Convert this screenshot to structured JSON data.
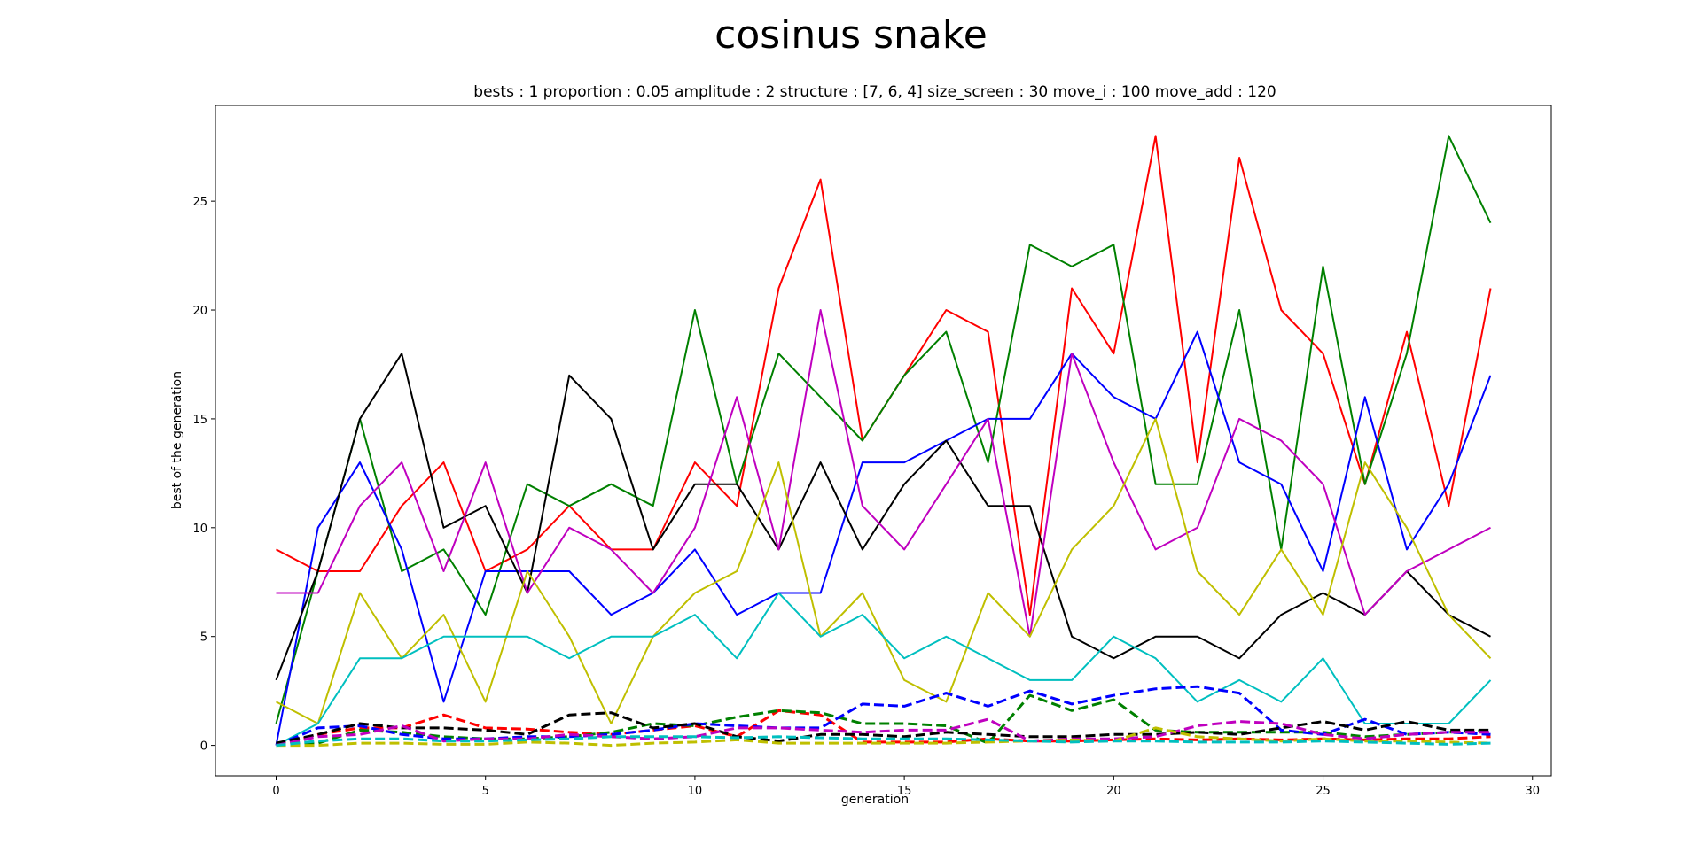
{
  "chart_data": {
    "type": "line",
    "title": "cosinus snake",
    "subtitle": "bests : 1   proportion : 0.05   amplitude : 2   structure : [7, 6, 4]   size_screen : 30   move_i : 100   move_add : 120",
    "xlabel": "generation",
    "ylabel": "best of the generation",
    "xlim": [
      -1.45,
      30.45
    ],
    "ylim": [
      -1.4,
      29.4
    ],
    "xticks": [
      0,
      5,
      10,
      15,
      20,
      25,
      30
    ],
    "yticks": [
      0,
      5,
      10,
      15,
      20,
      25
    ],
    "grid": false,
    "x": [
      0,
      1,
      2,
      3,
      4,
      5,
      6,
      7,
      8,
      9,
      10,
      11,
      12,
      13,
      14,
      15,
      16,
      17,
      18,
      19,
      20,
      21,
      22,
      23,
      24,
      25,
      26,
      27,
      28,
      29
    ],
    "series": [
      {
        "color": "#ff0000",
        "style": "solid",
        "values": [
          9,
          8,
          8,
          11,
          13,
          8,
          9,
          11,
          9,
          9,
          13,
          11,
          21,
          26,
          14,
          17,
          20,
          19,
          6,
          21,
          18,
          28,
          13,
          27,
          20,
          18,
          12,
          19,
          11,
          21
        ]
      },
      {
        "color": "#008000",
        "style": "solid",
        "values": [
          1,
          8,
          15,
          8,
          9,
          6,
          12,
          11,
          12,
          11,
          20,
          12,
          18,
          16,
          14,
          17,
          19,
          13,
          23,
          22,
          23,
          12,
          12,
          20,
          9,
          22,
          12,
          18,
          28,
          24
        ]
      },
      {
        "color": "#0000ff",
        "style": "solid",
        "values": [
          0,
          10,
          13,
          9,
          2,
          8,
          8,
          8,
          6,
          7,
          9,
          6,
          7,
          7,
          13,
          13,
          14,
          15,
          15,
          18,
          16,
          15,
          19,
          13,
          12,
          8,
          16,
          9,
          12,
          17
        ]
      },
      {
        "color": "#000000",
        "style": "solid",
        "values": [
          3,
          8,
          15,
          18,
          10,
          11,
          7,
          17,
          15,
          9,
          12,
          12,
          9,
          13,
          9,
          12,
          14,
          11,
          11,
          5,
          4,
          5,
          5,
          4,
          6,
          7,
          6,
          8,
          6,
          5
        ]
      },
      {
        "color": "#bf00bf",
        "style": "solid",
        "values": [
          7,
          7,
          11,
          13,
          8,
          13,
          7,
          10,
          9,
          7,
          10,
          16,
          9,
          20,
          11,
          9,
          12,
          15,
          5,
          18,
          13,
          9,
          10,
          15,
          14,
          12,
          6,
          8,
          9,
          10
        ]
      },
      {
        "color": "#bfbf00",
        "style": "solid",
        "values": [
          2,
          1,
          7,
          4,
          6,
          2,
          8,
          5,
          1,
          5,
          7,
          8,
          13,
          5,
          7,
          3,
          2,
          7,
          5,
          9,
          11,
          15,
          8,
          6,
          9,
          6,
          13,
          10,
          6,
          4
        ]
      },
      {
        "color": "#00bfbf",
        "style": "solid",
        "values": [
          0,
          1,
          4,
          4,
          5,
          5,
          5,
          4,
          5,
          5,
          6,
          4,
          7,
          5,
          6,
          4,
          5,
          4,
          3,
          3,
          5,
          4,
          2,
          3,
          2,
          4,
          1,
          1,
          1,
          3
        ]
      },
      {
        "color": "#ff0000",
        "style": "dashed",
        "values": [
          0,
          0.5,
          0.8,
          0.8,
          1.4,
          0.8,
          0.75,
          0.6,
          0.5,
          0.7,
          0.9,
          0.4,
          1.6,
          1.4,
          0.15,
          0.15,
          0.15,
          0.3,
          0.2,
          0.2,
          0.25,
          0.3,
          0.25,
          0.3,
          0.25,
          0.3,
          0.25,
          0.3,
          0.3,
          0.4
        ]
      },
      {
        "color": "#008000",
        "style": "dashed",
        "values": [
          0,
          0.1,
          0.7,
          0.6,
          0.4,
          0.3,
          0.3,
          0.4,
          0.6,
          1.0,
          0.9,
          1.3,
          1.6,
          1.5,
          1.0,
          1.0,
          0.9,
          0.1,
          2.3,
          1.6,
          2.1,
          0.7,
          0.6,
          0.6,
          0.6,
          0.6,
          0.4,
          0.5,
          0.6,
          0.7
        ]
      },
      {
        "color": "#0000ff",
        "style": "dashed",
        "values": [
          0,
          0.8,
          0.9,
          0.5,
          0.3,
          0.3,
          0.4,
          0.4,
          0.5,
          0.7,
          1.0,
          0.9,
          0.8,
          0.8,
          1.9,
          1.8,
          2.4,
          1.8,
          2.5,
          1.9,
          2.3,
          2.6,
          2.7,
          2.4,
          0.7,
          0.5,
          1.2,
          0.5,
          0.6,
          0.5
        ]
      },
      {
        "color": "#000000",
        "style": "dashed",
        "values": [
          0.1,
          0.5,
          1.0,
          0.8,
          0.8,
          0.7,
          0.5,
          1.4,
          1.5,
          0.8,
          1.0,
          0.4,
          0.2,
          0.5,
          0.5,
          0.4,
          0.6,
          0.5,
          0.4,
          0.4,
          0.5,
          0.5,
          0.6,
          0.5,
          0.8,
          1.1,
          0.7,
          1.1,
          0.7,
          0.7
        ]
      },
      {
        "color": "#bf00bf",
        "style": "dashed",
        "values": [
          0,
          0.4,
          0.5,
          0.9,
          0.2,
          0.3,
          0.3,
          0.5,
          0.4,
          0.3,
          0.4,
          0.8,
          0.8,
          0.7,
          0.6,
          0.7,
          0.7,
          1.2,
          0.2,
          0.3,
          0.3,
          0.4,
          0.9,
          1.1,
          1.0,
          0.5,
          0.3,
          0.5,
          0.6,
          0.6
        ]
      },
      {
        "color": "#bfbf00",
        "style": "dashed",
        "values": [
          0,
          0,
          0.1,
          0.1,
          0.05,
          0.05,
          0.15,
          0.1,
          0.0,
          0.1,
          0.15,
          0.25,
          0.1,
          0.1,
          0.1,
          0.1,
          0.1,
          0.15,
          0.2,
          0.25,
          0.2,
          0.8,
          0.4,
          0.3,
          0.2,
          0.3,
          0.2,
          0.2,
          0.15,
          0.1
        ]
      },
      {
        "color": "#00bfbf",
        "style": "dashed",
        "values": [
          0,
          0.2,
          0.3,
          0.3,
          0.2,
          0.2,
          0.25,
          0.3,
          0.4,
          0.4,
          0.4,
          0.35,
          0.4,
          0.35,
          0.3,
          0.3,
          0.3,
          0.25,
          0.2,
          0.15,
          0.2,
          0.2,
          0.15,
          0.15,
          0.15,
          0.2,
          0.15,
          0.1,
          0.05,
          0.1
        ]
      }
    ]
  }
}
